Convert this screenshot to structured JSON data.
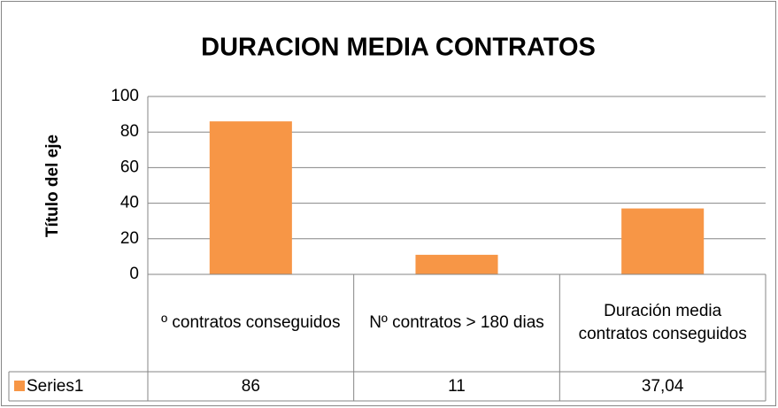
{
  "chart_data": {
    "type": "bar",
    "title": "DURACION MEDIA CONTRATOS",
    "y_axis_label": "Título del eje",
    "categories": [
      "º contratos conseguidos",
      "Nº contratos > 180 dias",
      "Duración media contratos conseguidos"
    ],
    "series": [
      {
        "name": "Series1",
        "color": "#f79646",
        "values": [
          86,
          11,
          37.04
        ],
        "value_labels": [
          "86",
          "11",
          "37,04"
        ]
      }
    ],
    "ylim": [
      0,
      100
    ],
    "yticks": [
      0,
      20,
      40,
      60,
      80,
      100
    ],
    "grid": true,
    "data_table": true
  }
}
